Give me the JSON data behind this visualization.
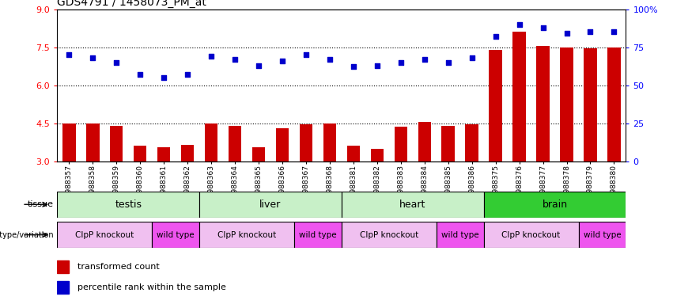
{
  "title": "GDS4791 / 1458073_PM_at",
  "samples": [
    "GSM988357",
    "GSM988358",
    "GSM988359",
    "GSM988360",
    "GSM988361",
    "GSM988362",
    "GSM988363",
    "GSM988364",
    "GSM988365",
    "GSM988366",
    "GSM988367",
    "GSM988368",
    "GSM988381",
    "GSM988382",
    "GSM988383",
    "GSM988384",
    "GSM988385",
    "GSM988386",
    "GSM988375",
    "GSM988376",
    "GSM988377",
    "GSM988378",
    "GSM988379",
    "GSM988380"
  ],
  "bar_values": [
    4.5,
    4.5,
    4.4,
    3.6,
    3.55,
    3.65,
    4.5,
    4.4,
    3.55,
    4.3,
    4.45,
    4.5,
    3.6,
    3.5,
    4.35,
    4.55,
    4.4,
    4.45,
    7.4,
    8.1,
    7.55,
    7.5,
    7.45,
    7.5
  ],
  "dot_values": [
    70,
    68,
    65,
    57,
    55,
    57,
    69,
    67,
    63,
    66,
    70,
    67,
    62,
    63,
    65,
    67,
    65,
    68,
    82,
    90,
    88,
    84,
    85,
    85
  ],
  "tissues": [
    {
      "label": "testis",
      "start": 0,
      "end": 6,
      "color": "#c8f0c8"
    },
    {
      "label": "liver",
      "start": 6,
      "end": 12,
      "color": "#c8f0c8"
    },
    {
      "label": "heart",
      "start": 12,
      "end": 18,
      "color": "#c8f0c8"
    },
    {
      "label": "brain",
      "start": 18,
      "end": 24,
      "color": "#33cc33"
    }
  ],
  "genotypes": [
    {
      "label": "ClpP knockout",
      "start": 0,
      "end": 4,
      "color": "#f0c0f0"
    },
    {
      "label": "wild type",
      "start": 4,
      "end": 6,
      "color": "#ee55ee"
    },
    {
      "label": "ClpP knockout",
      "start": 6,
      "end": 10,
      "color": "#f0c0f0"
    },
    {
      "label": "wild type",
      "start": 10,
      "end": 12,
      "color": "#ee55ee"
    },
    {
      "label": "ClpP knockout",
      "start": 12,
      "end": 16,
      "color": "#f0c0f0"
    },
    {
      "label": "wild type",
      "start": 16,
      "end": 18,
      "color": "#ee55ee"
    },
    {
      "label": "ClpP knockout",
      "start": 18,
      "end": 22,
      "color": "#f0c0f0"
    },
    {
      "label": "wild type",
      "start": 22,
      "end": 24,
      "color": "#ee55ee"
    }
  ],
  "bar_color": "#cc0000",
  "dot_color": "#0000cc",
  "ylim_left": [
    3,
    9
  ],
  "ylim_right": [
    0,
    100
  ],
  "yticks_left": [
    3,
    4.5,
    6,
    7.5,
    9
  ],
  "yticks_right": [
    0,
    25,
    50,
    75,
    100
  ],
  "hlines": [
    4.5,
    6.0,
    7.5
  ],
  "background_color": "#ffffff"
}
